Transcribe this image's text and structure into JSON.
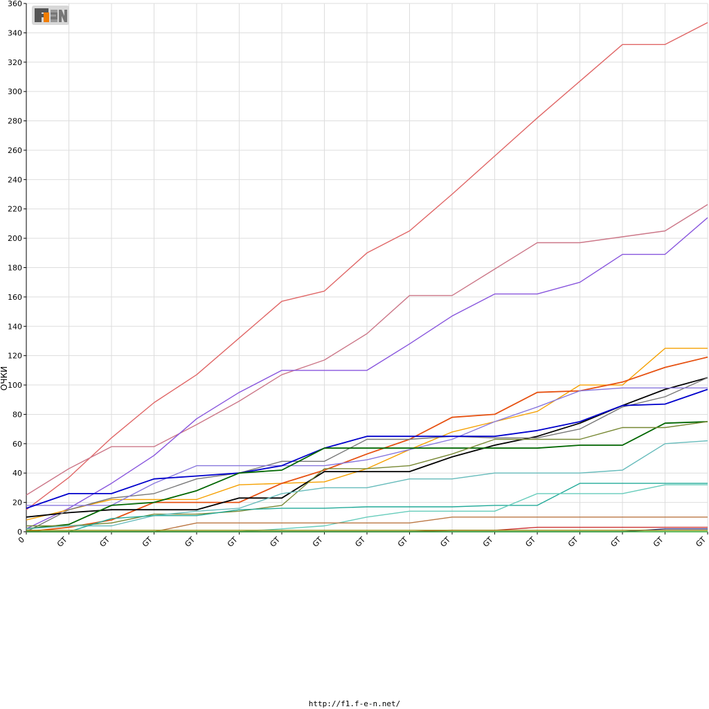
{
  "footer": {
    "url": "http://f1.f-e-n.net/"
  },
  "logo": {
    "text": "F1EN",
    "color_main": "#555555",
    "color_accent": "#f07d00"
  },
  "chart_data": {
    "type": "line",
    "title": "",
    "xlabel": "",
    "ylabel": "ОЧКИ",
    "ylim": [
      0,
      360
    ],
    "yticks": [
      0,
      20,
      40,
      60,
      80,
      100,
      120,
      140,
      160,
      180,
      200,
      220,
      240,
      260,
      280,
      300,
      320,
      340,
      360
    ],
    "x": [
      0,
      1,
      2,
      3,
      4,
      5,
      6,
      7,
      8,
      9,
      10,
      11,
      12,
      13,
      14,
      15,
      16
    ],
    "xtick_labels": [
      "0",
      "GT",
      "GT",
      "GT",
      "GT",
      "GT",
      "GT",
      "GT",
      "GT",
      "GT",
      "GT",
      "GT",
      "GT",
      "GT",
      "GT",
      "GT",
      "GT"
    ],
    "grid": true,
    "legend": "none",
    "series": [
      {
        "color": "#e06666",
        "values": [
          15,
          37,
          64,
          88,
          107,
          132,
          157,
          164,
          190,
          205,
          230,
          256,
          282,
          307,
          332,
          332,
          347
        ]
      },
      {
        "color": "#cc7788",
        "values": [
          25,
          43,
          58,
          58,
          73,
          89,
          107,
          117,
          135,
          161,
          161,
          179,
          197,
          197,
          201,
          205,
          223
        ]
      },
      {
        "color": "#8855dd",
        "values": [
          2,
          16,
          33,
          52,
          77,
          95,
          110,
          110,
          110,
          128,
          147,
          162,
          162,
          170,
          189,
          189,
          214
        ]
      },
      {
        "color": "#f5a000",
        "values": [
          8,
          15,
          22,
          22,
          22,
          32,
          33,
          34,
          43,
          56,
          68,
          75,
          82,
          100,
          100,
          125,
          125
        ]
      },
      {
        "color": "#e65010",
        "values": [
          0,
          3,
          8,
          20,
          20,
          20,
          33,
          42,
          53,
          63,
          78,
          80,
          95,
          96,
          102,
          112,
          119
        ]
      },
      {
        "color": "#000000",
        "values": [
          10,
          13,
          15,
          15,
          15,
          23,
          23,
          41,
          41,
          41,
          51,
          59,
          65,
          74,
          86,
          97,
          105
        ]
      },
      {
        "color": "#777777",
        "values": [
          0,
          15,
          23,
          26,
          36,
          40,
          48,
          48,
          63,
          63,
          65,
          64,
          64,
          70,
          85,
          92,
          105
        ]
      },
      {
        "color": "#8877dd",
        "values": [
          18,
          18,
          18,
          33,
          45,
          45,
          45,
          45,
          49,
          56,
          63,
          75,
          85,
          96,
          98,
          98,
          98
        ]
      },
      {
        "color": "#0000cc",
        "values": [
          16,
          26,
          26,
          36,
          38,
          40,
          45,
          57,
          65,
          65,
          65,
          65,
          69,
          75,
          86,
          87,
          97
        ]
      },
      {
        "color": "#006600",
        "values": [
          2,
          5,
          18,
          20,
          28,
          40,
          42,
          57,
          57,
          57,
          57,
          57,
          57,
          59,
          59,
          74,
          75
        ]
      },
      {
        "color": "#778833",
        "values": [
          4,
          4,
          6,
          12,
          12,
          14,
          18,
          43,
          43,
          45,
          53,
          63,
          63,
          63,
          71,
          71,
          75
        ]
      },
      {
        "color": "#66bbbb",
        "values": [
          2,
          4,
          4,
          11,
          14,
          16,
          26,
          30,
          30,
          36,
          36,
          40,
          40,
          40,
          42,
          60,
          62
        ]
      },
      {
        "color": "#22aa99",
        "values": [
          0,
          0,
          9,
          11,
          11,
          15,
          16,
          16,
          17,
          17,
          17,
          18,
          18,
          33,
          33,
          33,
          33
        ]
      },
      {
        "color": "#66ccbb",
        "values": [
          0,
          0,
          0,
          0,
          0,
          0,
          2,
          4,
          10,
          14,
          14,
          14,
          26,
          26,
          26,
          32,
          32
        ]
      },
      {
        "color": "#bb7744",
        "values": [
          0,
          0,
          0,
          0,
          6,
          6,
          6,
          6,
          6,
          6,
          10,
          10,
          10,
          10,
          10,
          10,
          10
        ]
      },
      {
        "color": "#cc3333",
        "values": [
          0,
          0,
          0,
          0,
          0,
          0,
          0,
          0,
          0,
          0,
          1,
          1,
          3,
          3,
          3,
          3,
          3
        ]
      },
      {
        "color": "#333388",
        "values": [
          0,
          0,
          0,
          0,
          0,
          0,
          0,
          0,
          0,
          0,
          0,
          0,
          0,
          0,
          0,
          2,
          2
        ]
      },
      {
        "color": "#888800",
        "values": [
          1,
          1,
          1,
          1,
          1,
          1,
          1,
          1,
          1,
          1,
          1,
          1,
          1,
          1,
          1,
          1,
          1
        ]
      },
      {
        "color": "#33aa33",
        "values": [
          0,
          0,
          0,
          0,
          0,
          0,
          0,
          0,
          0,
          0,
          0,
          0,
          0,
          0,
          0,
          0,
          0
        ]
      }
    ]
  }
}
